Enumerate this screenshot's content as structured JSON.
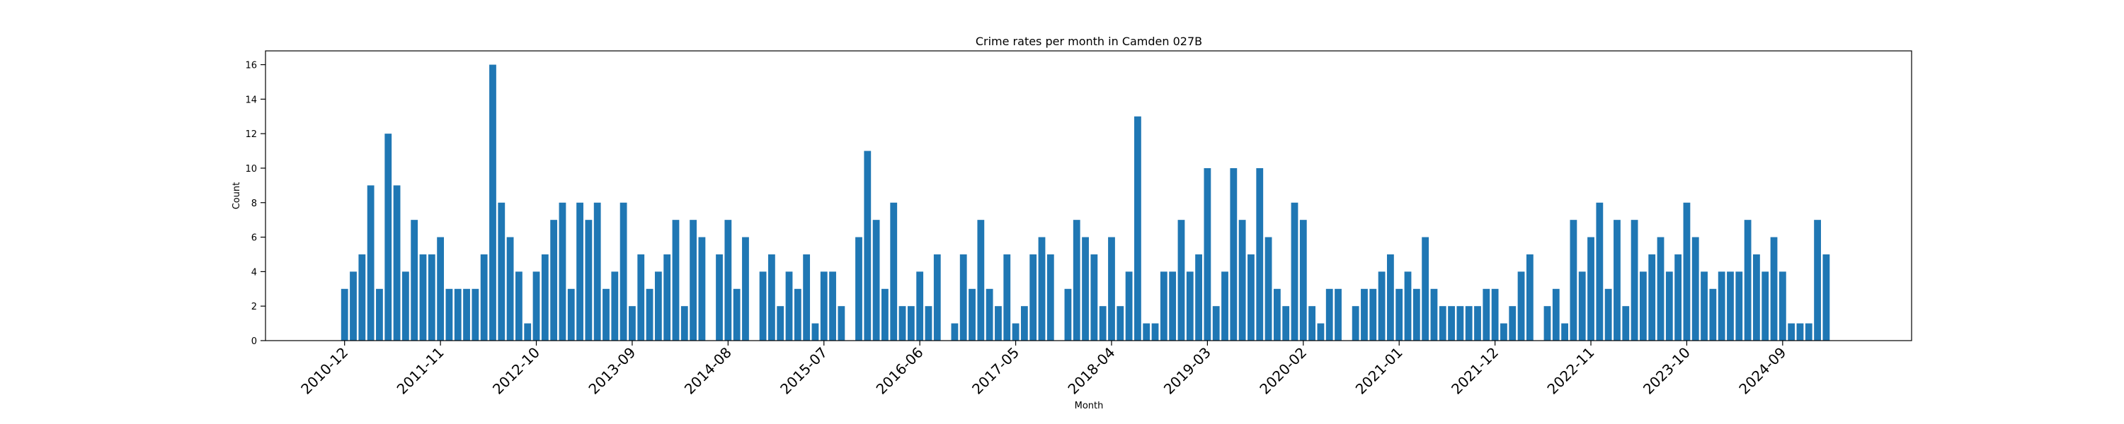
{
  "chart_data": {
    "type": "bar",
    "title": "Crime rates per month in Camden 027B",
    "xlabel": "Month",
    "ylabel": "Count",
    "ylim": [
      0,
      16.8
    ],
    "yticks": [
      0,
      2,
      4,
      6,
      8,
      10,
      12,
      14,
      16
    ],
    "grid": false,
    "legend": "none",
    "bar_color": "#1f77b4",
    "xtick_labels": [
      "2010-12",
      "2011-11",
      "2012-10",
      "2013-09",
      "2014-08",
      "2015-07",
      "2016-06",
      "2017-05",
      "2018-04",
      "2019-03",
      "2020-02",
      "2021-01",
      "2021-12",
      "2022-11",
      "2023-10",
      "2024-09"
    ],
    "start_month": "2010-12",
    "values": [
      3,
      4,
      5,
      9,
      3,
      12,
      9,
      4,
      7,
      5,
      5,
      6,
      3,
      3,
      3,
      3,
      5,
      16,
      8,
      6,
      4,
      1,
      4,
      5,
      7,
      8,
      3,
      8,
      7,
      8,
      3,
      4,
      8,
      2,
      5,
      3,
      4,
      5,
      7,
      2,
      7,
      6,
      0,
      5,
      7,
      3,
      6,
      0,
      4,
      5,
      2,
      4,
      3,
      5,
      1,
      4,
      4,
      2,
      0,
      6,
      11,
      7,
      3,
      8,
      2,
      2,
      4,
      2,
      5,
      0,
      1,
      5,
      3,
      7,
      3,
      2,
      5,
      1,
      2,
      5,
      6,
      5,
      0,
      3,
      7,
      6,
      5,
      2,
      6,
      2,
      4,
      13,
      1,
      1,
      4,
      4,
      7,
      4,
      5,
      10,
      2,
      4,
      10,
      7,
      5,
      10,
      6,
      3,
      2,
      8,
      7,
      2,
      1,
      3,
      3,
      0,
      2,
      3,
      3,
      4,
      5,
      3,
      4,
      3,
      6,
      3,
      2,
      2,
      2,
      2,
      2,
      3,
      3,
      1,
      2,
      4,
      5,
      0,
      2,
      3,
      1,
      7,
      4,
      6,
      8,
      3,
      7,
      2,
      7,
      4,
      5,
      6,
      4,
      5,
      8,
      6,
      4,
      3,
      4,
      4,
      4,
      7,
      5,
      4,
      6,
      4,
      1,
      1,
      1,
      7,
      5
    ]
  }
}
